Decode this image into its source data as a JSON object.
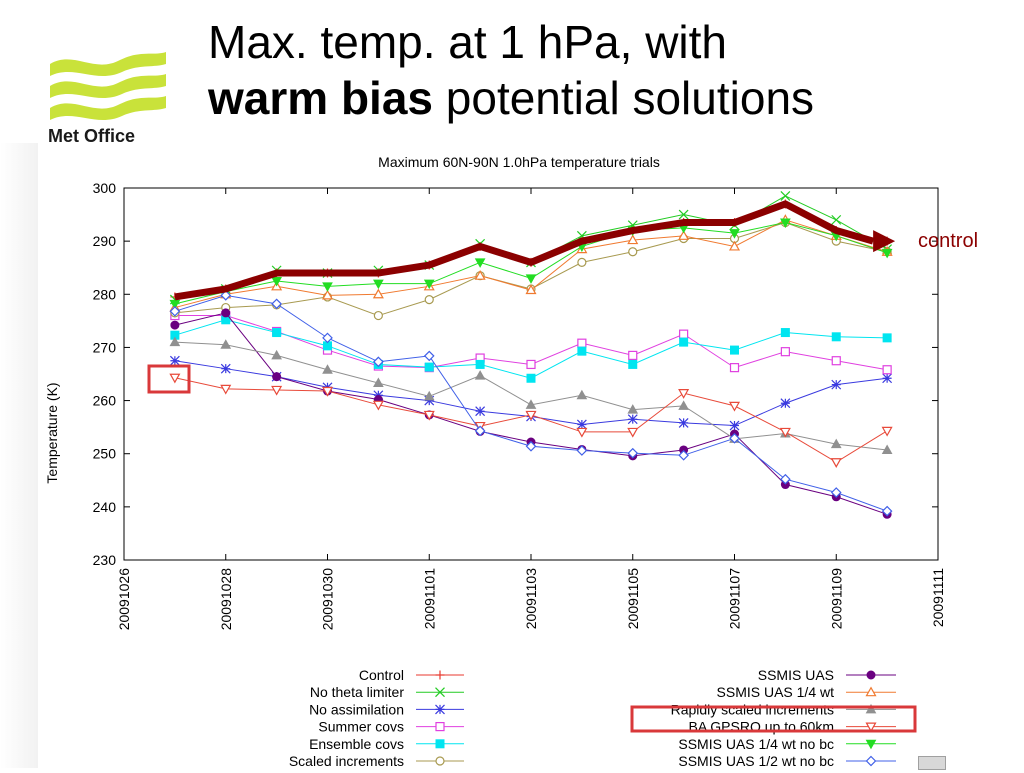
{
  "slide": {
    "title_line1": "Max. temp. at 1 hPa, with",
    "title_line2_bold": "warm bias",
    "title_line2_rest": " potential solutions",
    "logo_text": "Met Office",
    "annotation": "control"
  },
  "colors": {
    "control_arrow": "#8b0000",
    "annotation_text": "#8b0000",
    "highlight_box": "#d9383a",
    "logo_green": "#c9e23a"
  },
  "chart_data": {
    "type": "line",
    "title": "Maximum 60N-90N 1.0hPa temperature trials",
    "xlabel": "",
    "ylabel": "Temperature (K)",
    "ylim": [
      230,
      300
    ],
    "yticks": [
      "230",
      "240",
      "250",
      "260",
      "270",
      "280",
      "290",
      "300"
    ],
    "x_ticks": [
      "20091026",
      "20091028",
      "20091030",
      "20091101",
      "20091103",
      "20091105",
      "20091107",
      "20091109",
      "20091111"
    ],
    "x": [
      "20091027",
      "20091028",
      "20091029",
      "20091030",
      "20091031",
      "20091101",
      "20091102",
      "20091103",
      "20091104",
      "20091105",
      "20091106",
      "20091107",
      "20091108",
      "20091109",
      "20091110"
    ],
    "grid": true,
    "legend_placement": "bottom",
    "series": [
      {
        "name": "Control",
        "color": "#e8392f",
        "marker": "plus",
        "values": [
          279.5,
          281,
          284,
          284,
          284,
          285.5,
          289,
          286,
          290,
          292,
          293.5,
          293.5,
          297,
          292,
          290
        ]
      },
      {
        "name": "No theta limiter",
        "color": "#22cc22",
        "marker": "cross",
        "values": [
          279,
          281,
          284.5,
          284,
          284.5,
          285.5,
          289.5,
          286,
          291,
          293,
          295,
          293,
          298.5,
          294,
          288.5
        ]
      },
      {
        "name": "No assimilation",
        "color": "#3a3adf",
        "marker": "star",
        "values": [
          267.5,
          266,
          264.5,
          262.5,
          261,
          260,
          258,
          257,
          255.5,
          256.5,
          255.8,
          255.3,
          259.5,
          263,
          264.2
        ]
      },
      {
        "name": "Summer covs",
        "color": "#e040e0",
        "marker": "square",
        "values": [
          276,
          276,
          273,
          269.5,
          266.5,
          266.2,
          268,
          266.8,
          270.8,
          268.5,
          272.5,
          266.2,
          269.2,
          267.5,
          265.8
        ]
      },
      {
        "name": "Ensemble covs",
        "color": "#00e5f0",
        "marker": "square-filled",
        "values": [
          272.3,
          275.2,
          272.8,
          270.3,
          266.8,
          266.3,
          266.8,
          264.2,
          269.3,
          266.8,
          271,
          269.5,
          272.8,
          272,
          271.8
        ]
      },
      {
        "name": "Scaled increments",
        "color": "#a89a50",
        "marker": "circle",
        "values": [
          276.5,
          277.5,
          278,
          279.5,
          276,
          279,
          283.5,
          281,
          286,
          288,
          290.5,
          290.5,
          293.5,
          290,
          288
        ]
      },
      {
        "name": "SSMIS UAS",
        "color": "#6a0080",
        "marker": "circle-filled",
        "values": [
          274.2,
          276.5,
          264.5,
          261.8,
          260.2,
          257.3,
          254.2,
          252.2,
          250.8,
          249.6,
          250.7,
          253.7,
          244.2,
          241.9,
          238.6
        ]
      },
      {
        "name": "SSMIS UAS 1/4 wt",
        "color": "#f07a30",
        "marker": "triangle",
        "values": [
          277.5,
          280,
          281.5,
          279.8,
          280,
          281.5,
          283.5,
          280.8,
          288.5,
          290.2,
          291,
          289,
          294,
          291,
          288
        ]
      },
      {
        "name": "Rapidly scaled increments",
        "color": "#909090",
        "marker": "triangle-filled",
        "values": [
          271,
          270.5,
          268.5,
          265.8,
          263.3,
          260.8,
          264.7,
          259.2,
          261,
          258.3,
          259,
          252.8,
          253.8,
          251.8,
          250.7
        ]
      },
      {
        "name": "BA GPSRO up to 60km",
        "color": "#e84a3a",
        "marker": "triangle-down",
        "values": [
          264.3,
          262.2,
          262,
          261.8,
          259.2,
          257.3,
          255.2,
          257.3,
          254.1,
          254.1,
          261.4,
          259,
          254.1,
          248.4,
          254.3
        ]
      },
      {
        "name": "SSMIS UAS 1/4 wt no bc",
        "color": "#22dd22",
        "marker": "triangle-down-filled",
        "values": [
          278.2,
          280.5,
          282.5,
          281.5,
          282,
          282,
          286,
          283,
          289,
          292,
          292.5,
          291.5,
          293.5,
          291,
          287.8
        ]
      },
      {
        "name": "SSMIS UAS 1/2 wt no bc",
        "color": "#4060e8",
        "marker": "diamond",
        "values": [
          276.8,
          279.8,
          278.2,
          271.8,
          267.3,
          268.4,
          254.3,
          251.4,
          250.6,
          250.1,
          249.7,
          252.9,
          245.2,
          242.7,
          239.2
        ]
      }
    ]
  }
}
